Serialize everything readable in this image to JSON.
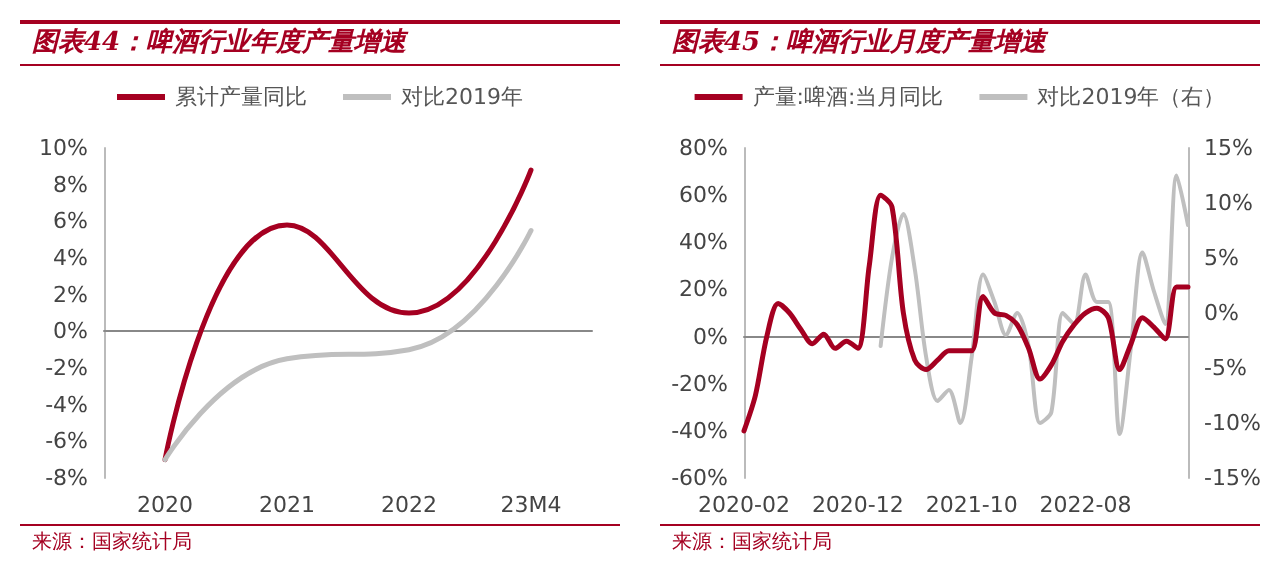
{
  "chart_data": [
    {
      "type": "line",
      "title": "图表44：啤酒行业年度产量增速",
      "categories": [
        "2020",
        "2021",
        "2022",
        "23M4"
      ],
      "series": [
        {
          "name": "累计产量同比",
          "color": "#a50021",
          "values": [
            -7,
            5.8,
            1.0,
            8.8
          ]
        },
        {
          "name": "对比2019年",
          "color": "#bfbfbf",
          "values": [
            -7,
            -1.5,
            -1.0,
            5.5
          ]
        }
      ],
      "ylim": [
        -8,
        10
      ],
      "yticks": [
        {
          "value": -8,
          "label": "-8%"
        },
        {
          "value": -6,
          "label": "-6%"
        },
        {
          "value": -4,
          "label": "-4%"
        },
        {
          "value": -2,
          "label": "-2%"
        },
        {
          "value": 0,
          "label": "0%"
        },
        {
          "value": 2,
          "label": "2%"
        },
        {
          "value": 4,
          "label": "4%"
        },
        {
          "value": 6,
          "label": "6%"
        },
        {
          "value": 8,
          "label": "8%"
        },
        {
          "value": 10,
          "label": "10%"
        }
      ],
      "legend": "top",
      "marker": "none",
      "annotations": [
        "来源：国家统计局"
      ]
    },
    {
      "type": "line",
      "title": "图表45：啤酒行业月度产量增速",
      "categories": [
        "2020-02",
        null,
        null,
        null,
        null,
        null,
        null,
        null,
        null,
        null,
        "2020-12",
        null,
        null,
        null,
        null,
        null,
        null,
        null,
        null,
        null,
        "2021-10",
        null,
        null,
        null,
        null,
        null,
        null,
        null,
        null,
        null,
        "2022-08",
        null,
        null,
        null,
        null,
        null,
        null,
        null,
        null,
        null
      ],
      "series": [
        {
          "name": "产量:啤酒:当月同比",
          "color": "#a50021",
          "values": [
            -40,
            -25,
            0,
            14,
            10,
            3,
            -3,
            1,
            -5,
            -2,
            -5,
            30,
            60,
            55,
            10,
            -10,
            -14,
            -10,
            -6,
            -6,
            -6,
            17,
            10,
            9,
            5,
            -5,
            -18,
            -12,
            -2,
            5,
            10,
            12,
            8,
            -14,
            -3,
            8,
            4,
            -1,
            21,
            21
          ]
        },
        {
          "name": "对比2019年（右）",
          "color": "#bfbfbf",
          "axis": "y2",
          "values": [
            null,
            null,
            null,
            null,
            null,
            null,
            null,
            null,
            null,
            null,
            null,
            null,
            -3,
            5,
            9,
            4,
            -4,
            -8,
            -7,
            -10,
            -4,
            3.5,
            1,
            -2,
            0,
            -3,
            -10,
            -9,
            0,
            -1,
            3.5,
            1,
            1,
            -11,
            -3,
            5.5,
            2,
            -1,
            12.5,
            8
          ]
        }
      ],
      "ylim": [
        -60,
        80
      ],
      "yticks": [
        {
          "value": -60,
          "label": "-60%"
        },
        {
          "value": -40,
          "label": "-40%"
        },
        {
          "value": -20,
          "label": "-20%"
        },
        {
          "value": 0,
          "label": "0%"
        },
        {
          "value": 20,
          "label": "20%"
        },
        {
          "value": 40,
          "label": "40%"
        },
        {
          "value": 60,
          "label": "60%"
        },
        {
          "value": 80,
          "label": "80%"
        }
      ],
      "y2lim": [
        -15,
        15
      ],
      "y2ticks": [
        {
          "value": -15,
          "label": "-15%"
        },
        {
          "value": -10,
          "label": "-10%"
        },
        {
          "value": -5,
          "label": "-5%"
        },
        {
          "value": 0,
          "label": "0%"
        },
        {
          "value": 5,
          "label": "5%"
        },
        {
          "value": 10,
          "label": "10%"
        },
        {
          "value": 15,
          "label": "15%"
        }
      ],
      "legend": "top",
      "marker": "none",
      "annotations": [
        "来源：国家统计局"
      ]
    }
  ]
}
